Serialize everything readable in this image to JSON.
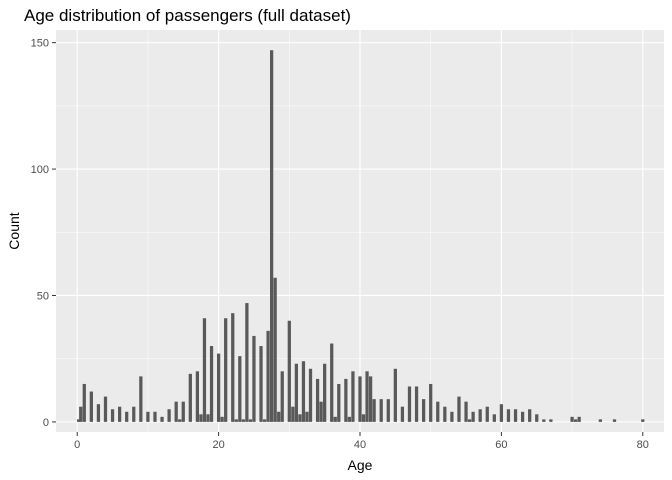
{
  "chart_data": {
    "type": "bar",
    "title": "Age distribution of passengers (full dataset)",
    "xlabel": "Age",
    "ylabel": "Count",
    "xlim": [
      -3,
      83
    ],
    "ylim": [
      -4,
      155
    ],
    "xticks": [
      0,
      20,
      40,
      60,
      80
    ],
    "yticks": [
      0,
      50,
      100,
      150
    ],
    "grid": true,
    "bar_color": "#595959",
    "panel_color": "#ebebeb",
    "bin_width": 0.5,
    "data": [
      {
        "x": 0.2,
        "y": 1
      },
      {
        "x": 0.5,
        "y": 6
      },
      {
        "x": 1,
        "y": 15
      },
      {
        "x": 2,
        "y": 12
      },
      {
        "x": 3,
        "y": 7
      },
      {
        "x": 4,
        "y": 10
      },
      {
        "x": 5,
        "y": 5
      },
      {
        "x": 6,
        "y": 6
      },
      {
        "x": 7,
        "y": 4
      },
      {
        "x": 8,
        "y": 6
      },
      {
        "x": 9,
        "y": 18
      },
      {
        "x": 10,
        "y": 4
      },
      {
        "x": 11,
        "y": 4
      },
      {
        "x": 12,
        "y": 2
      },
      {
        "x": 13,
        "y": 5
      },
      {
        "x": 14,
        "y": 8
      },
      {
        "x": 14.5,
        "y": 1
      },
      {
        "x": 15,
        "y": 8
      },
      {
        "x": 16,
        "y": 19
      },
      {
        "x": 17,
        "y": 20
      },
      {
        "x": 17.5,
        "y": 3
      },
      {
        "x": 18,
        "y": 41
      },
      {
        "x": 18.5,
        "y": 3
      },
      {
        "x": 19,
        "y": 30
      },
      {
        "x": 20,
        "y": 27
      },
      {
        "x": 20.5,
        "y": 2
      },
      {
        "x": 21,
        "y": 41
      },
      {
        "x": 22,
        "y": 43
      },
      {
        "x": 22.5,
        "y": 1
      },
      {
        "x": 23,
        "y": 26
      },
      {
        "x": 23.5,
        "y": 1
      },
      {
        "x": 24,
        "y": 47
      },
      {
        "x": 24.5,
        "y": 1
      },
      {
        "x": 25,
        "y": 34
      },
      {
        "x": 26,
        "y": 30
      },
      {
        "x": 26.5,
        "y": 1
      },
      {
        "x": 27,
        "y": 36
      },
      {
        "x": 27.5,
        "y": 147
      },
      {
        "x": 28,
        "y": 57
      },
      {
        "x": 28.5,
        "y": 4
      },
      {
        "x": 29,
        "y": 20
      },
      {
        "x": 30,
        "y": 40
      },
      {
        "x": 30.5,
        "y": 6
      },
      {
        "x": 31,
        "y": 23
      },
      {
        "x": 31.5,
        "y": 3
      },
      {
        "x": 32,
        "y": 24
      },
      {
        "x": 32.5,
        "y": 4
      },
      {
        "x": 33,
        "y": 21
      },
      {
        "x": 34,
        "y": 17
      },
      {
        "x": 34.5,
        "y": 8
      },
      {
        "x": 35,
        "y": 23
      },
      {
        "x": 36,
        "y": 31
      },
      {
        "x": 36.5,
        "y": 2
      },
      {
        "x": 37,
        "y": 15
      },
      {
        "x": 38,
        "y": 17
      },
      {
        "x": 38.5,
        "y": 2
      },
      {
        "x": 39,
        "y": 20
      },
      {
        "x": 40,
        "y": 18
      },
      {
        "x": 40.5,
        "y": 3
      },
      {
        "x": 41,
        "y": 20
      },
      {
        "x": 41.5,
        "y": 18
      },
      {
        "x": 42,
        "y": 9
      },
      {
        "x": 43,
        "y": 9
      },
      {
        "x": 44,
        "y": 9
      },
      {
        "x": 45,
        "y": 21
      },
      {
        "x": 46,
        "y": 6
      },
      {
        "x": 47,
        "y": 14
      },
      {
        "x": 48,
        "y": 14
      },
      {
        "x": 49,
        "y": 9
      },
      {
        "x": 50,
        "y": 15
      },
      {
        "x": 51,
        "y": 8
      },
      {
        "x": 52,
        "y": 6
      },
      {
        "x": 53,
        "y": 4
      },
      {
        "x": 54,
        "y": 10
      },
      {
        "x": 55,
        "y": 8
      },
      {
        "x": 55.5,
        "y": 1
      },
      {
        "x": 56,
        "y": 4
      },
      {
        "x": 57,
        "y": 5
      },
      {
        "x": 58,
        "y": 6
      },
      {
        "x": 59,
        "y": 3
      },
      {
        "x": 60,
        "y": 7
      },
      {
        "x": 61,
        "y": 5
      },
      {
        "x": 62,
        "y": 5
      },
      {
        "x": 63,
        "y": 4
      },
      {
        "x": 64,
        "y": 5
      },
      {
        "x": 65,
        "y": 3
      },
      {
        "x": 66,
        "y": 1
      },
      {
        "x": 67,
        "y": 1
      },
      {
        "x": 70,
        "y": 2
      },
      {
        "x": 70.5,
        "y": 1
      },
      {
        "x": 71,
        "y": 2
      },
      {
        "x": 74,
        "y": 1
      },
      {
        "x": 76,
        "y": 1
      },
      {
        "x": 80,
        "y": 1
      }
    ]
  }
}
